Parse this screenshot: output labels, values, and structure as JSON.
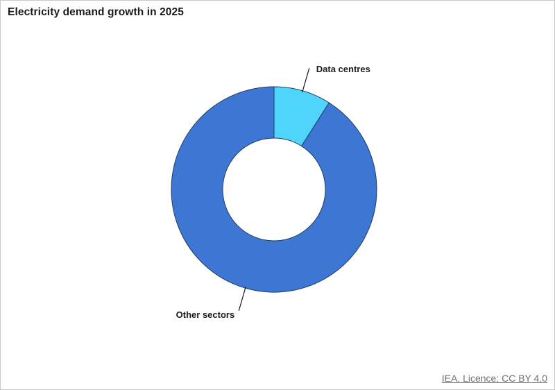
{
  "title": "Electricity demand growth in 2025",
  "source_link": "IEA. Licence: CC BY 4.0",
  "chart_data": {
    "type": "pie",
    "donut": true,
    "categories": [
      "Data centres",
      "Other sectors"
    ],
    "values": [
      9,
      91
    ],
    "unit": "%",
    "colors": [
      "#4fd4fb",
      "#3d77d3"
    ],
    "border_color": "#1f3a63",
    "labels_position": "outside with leader lines"
  }
}
